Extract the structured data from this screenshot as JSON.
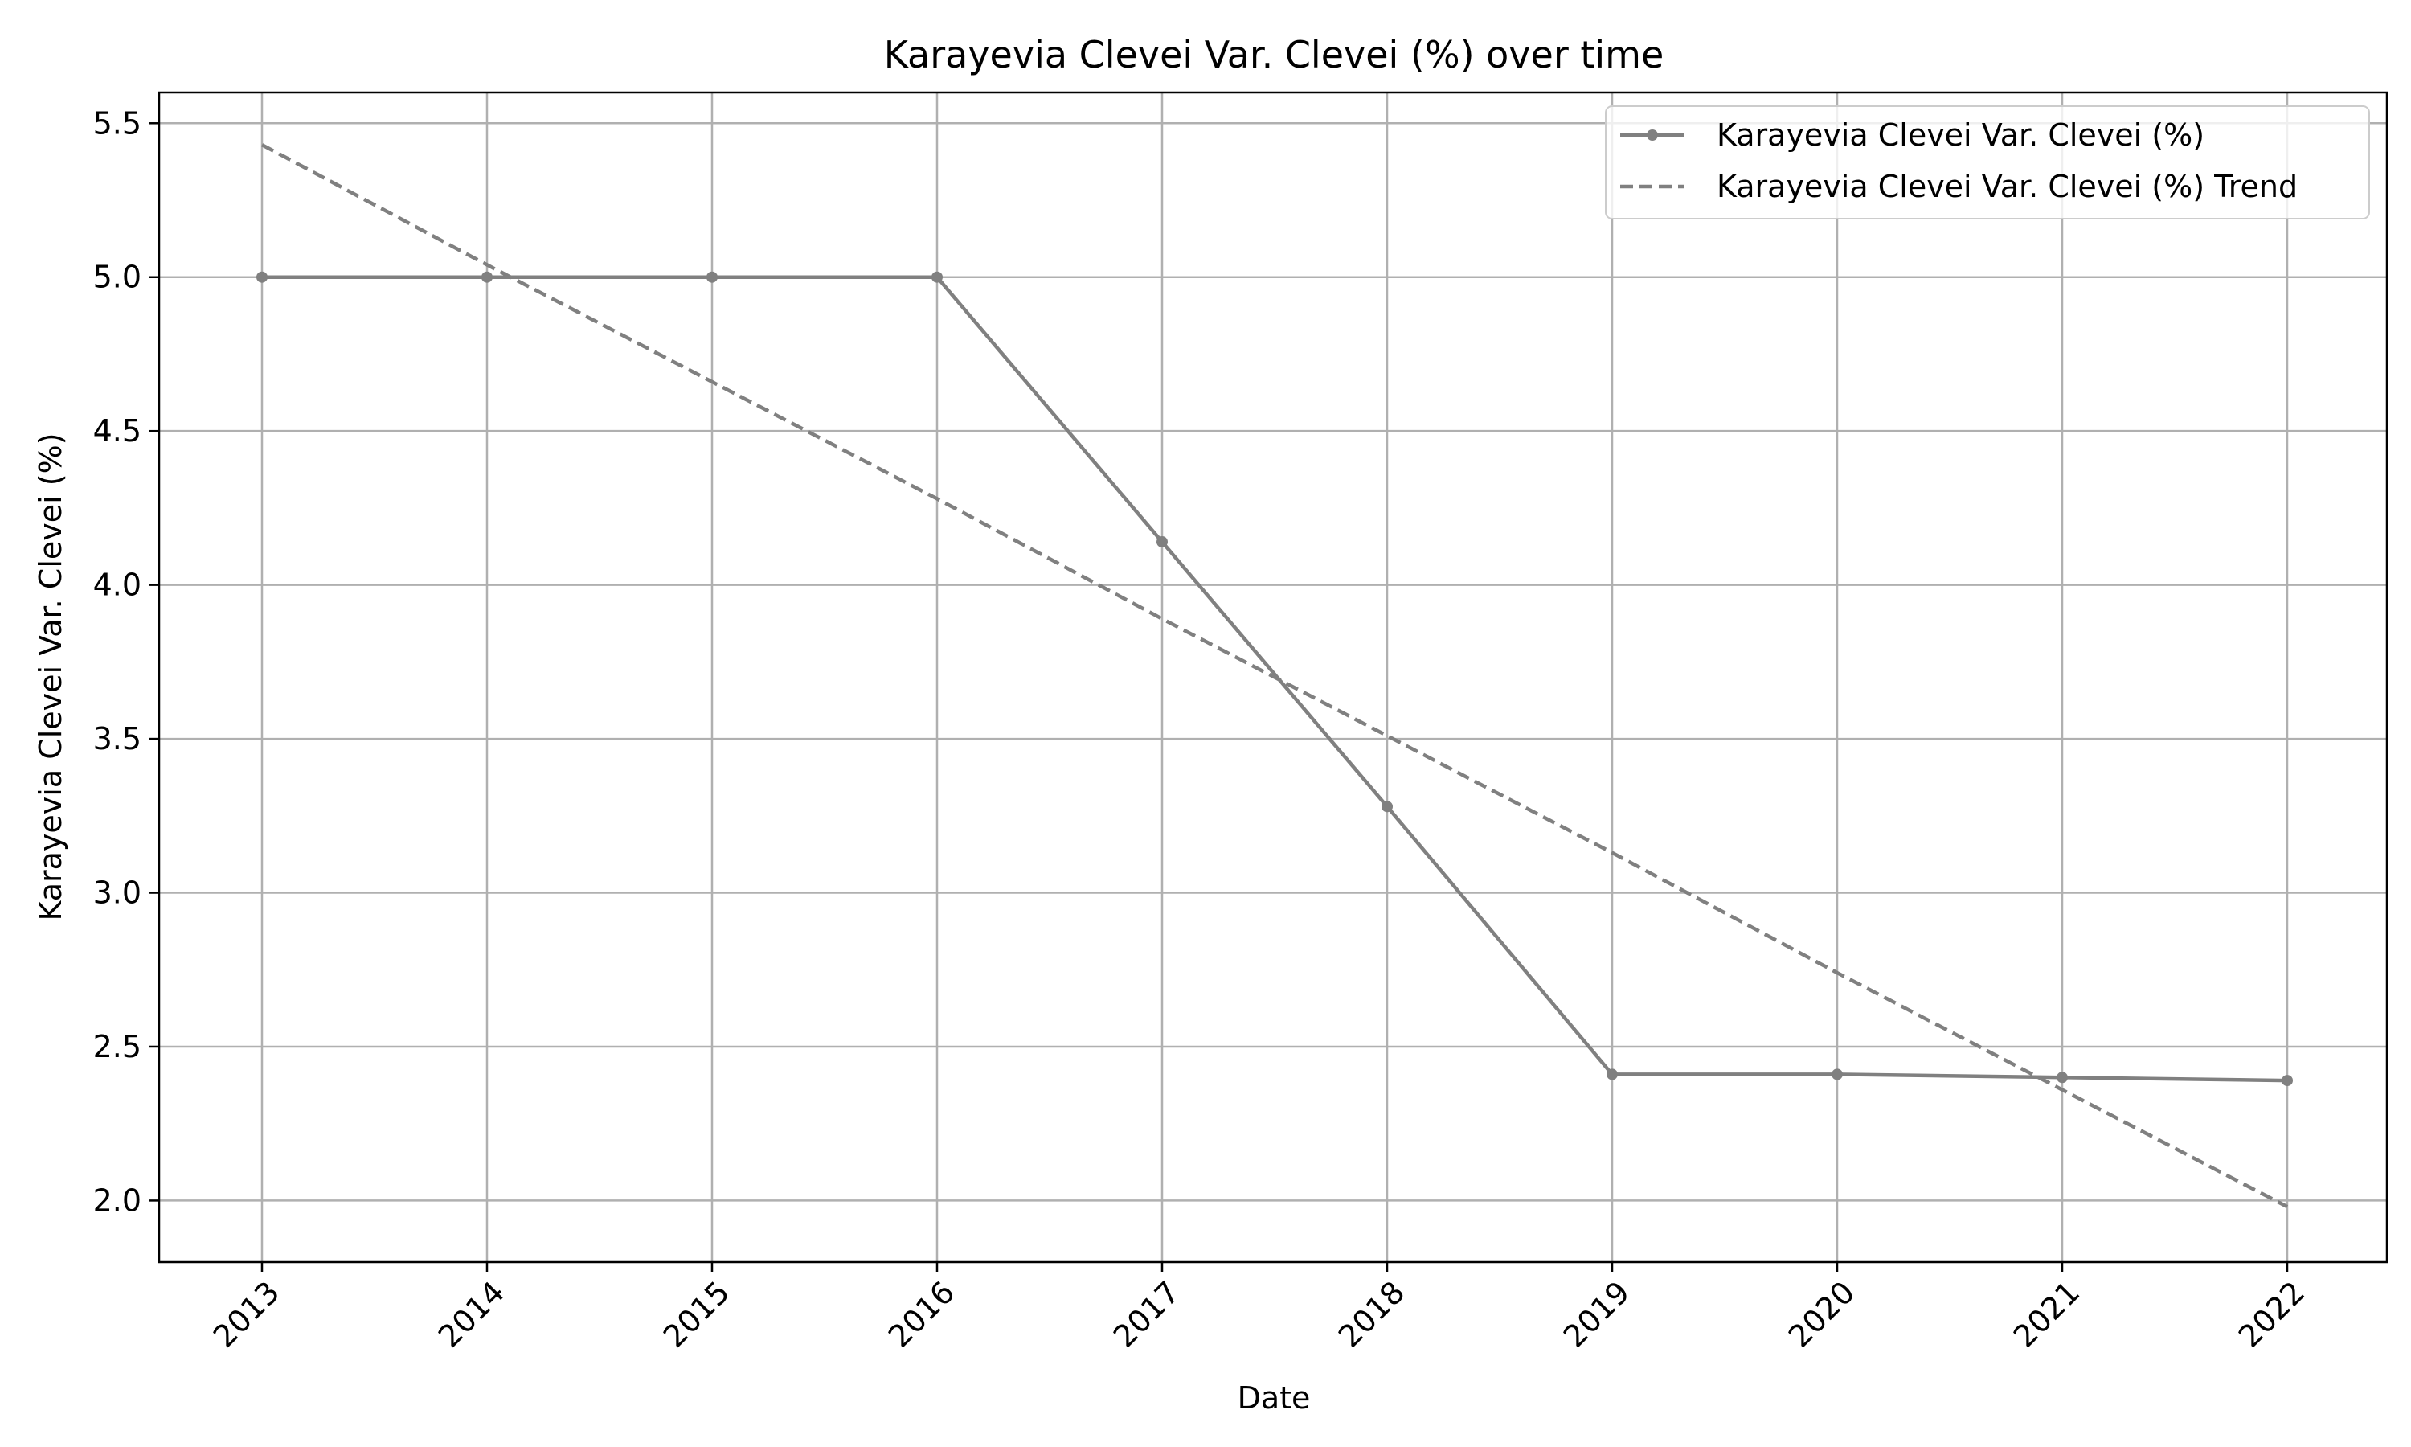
{
  "chart_data": {
    "type": "line",
    "title": "Karayevia Clevei Var. Clevei (%) over time",
    "xlabel": "Date",
    "ylabel": "Karayevia Clevei Var. Clevei (%)",
    "x": [
      "2013",
      "2014",
      "2015",
      "2016",
      "2017",
      "2018",
      "2019",
      "2020",
      "2021",
      "2022"
    ],
    "yticks": [
      "2.0",
      "2.5",
      "3.0",
      "3.5",
      "4.0",
      "4.5",
      "5.0",
      "5.5"
    ],
    "ylim": [
      1.8,
      5.6
    ],
    "grid": true,
    "legend_position": "top-right",
    "series": [
      {
        "name": "Karayevia Clevei Var. Clevei (%)",
        "style": "solid-with-markers",
        "color": "#808080",
        "values": [
          5.0,
          5.0,
          5.0,
          5.0,
          4.14,
          3.28,
          2.41,
          2.41,
          2.4,
          2.39
        ]
      },
      {
        "name": "Karayevia Clevei Var. Clevei (%) Trend",
        "style": "dashed",
        "color": "#808080",
        "values": [
          5.43,
          5.04,
          4.66,
          4.28,
          3.89,
          3.51,
          3.13,
          2.74,
          2.36,
          1.98
        ]
      }
    ]
  }
}
